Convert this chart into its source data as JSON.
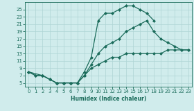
{
  "line1_x": [
    0,
    1,
    2,
    3,
    4,
    5,
    6,
    7,
    8,
    9,
    10,
    11,
    12,
    13,
    14,
    15,
    16,
    17,
    18
  ],
  "line1_y": [
    8,
    7,
    7,
    6,
    5,
    5,
    5,
    5,
    8,
    12,
    22,
    24,
    24,
    25,
    26,
    26,
    25,
    24,
    22
  ],
  "line2_x": [
    0,
    1,
    2,
    3,
    4,
    5,
    6,
    7,
    8,
    9,
    10,
    11,
    12,
    13,
    14,
    15,
    16,
    17,
    18,
    19,
    20,
    21,
    22,
    23
  ],
  "line2_y": [
    8,
    7,
    7,
    6,
    5,
    5,
    5,
    5,
    7,
    10,
    13,
    15,
    16,
    17,
    19,
    20,
    21,
    22,
    19,
    17,
    16,
    15,
    14,
    14
  ],
  "line3_x": [
    0,
    2,
    3,
    4,
    5,
    6,
    7,
    8,
    9,
    10,
    11,
    12,
    13,
    14,
    15,
    16,
    17,
    18,
    19,
    20,
    21,
    22,
    23
  ],
  "line3_y": [
    8,
    7,
    6,
    5,
    5,
    5,
    5,
    7,
    9,
    10,
    11,
    12,
    12,
    13,
    13,
    13,
    13,
    13,
    13,
    14,
    14,
    14,
    14
  ],
  "line_color": "#1a6b5a",
  "bg_color": "#d0ecec",
  "grid_color": "#aed4d4",
  "xlabel": "Humidex (Indice chaleur)",
  "ylim": [
    4,
    27
  ],
  "xlim": [
    -0.5,
    23.5
  ],
  "yticks": [
    5,
    7,
    9,
    11,
    13,
    15,
    17,
    19,
    21,
    23,
    25
  ],
  "xticks": [
    0,
    1,
    2,
    3,
    4,
    5,
    6,
    7,
    8,
    9,
    10,
    11,
    12,
    13,
    14,
    15,
    16,
    17,
    18,
    19,
    20,
    21,
    22,
    23
  ],
  "marker": "D",
  "marker_size": 2.0,
  "line_width": 0.9
}
